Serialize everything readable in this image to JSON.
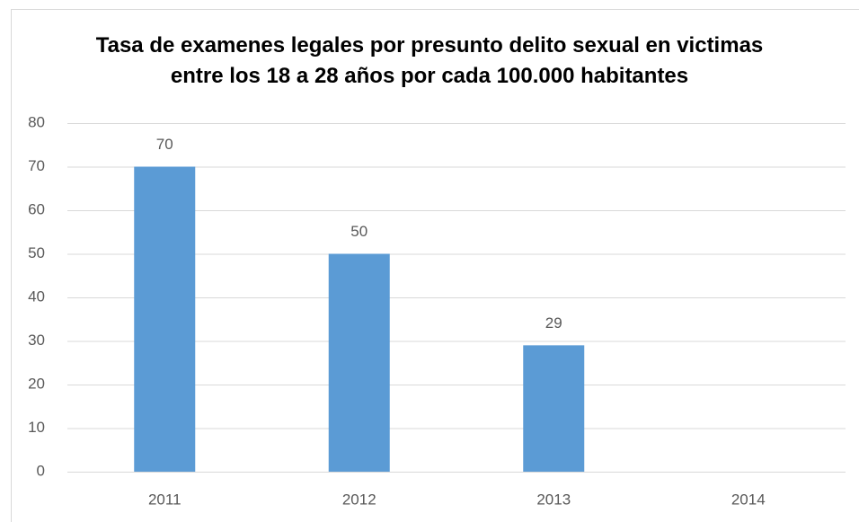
{
  "chart_data": {
    "type": "bar",
    "title": "Tasa de examenes legales por presunto delito sexual en victimas entre los 18 a 28 años por cada 100.000 habitantes",
    "categories": [
      "2011",
      "2012",
      "2013",
      "2014"
    ],
    "values": [
      70,
      50,
      29,
      null
    ],
    "color": "#5b9bd5",
    "ylim": [
      0,
      80
    ],
    "yticks": [
      0,
      10,
      20,
      30,
      40,
      50,
      60,
      70,
      80
    ],
    "grid": true
  }
}
